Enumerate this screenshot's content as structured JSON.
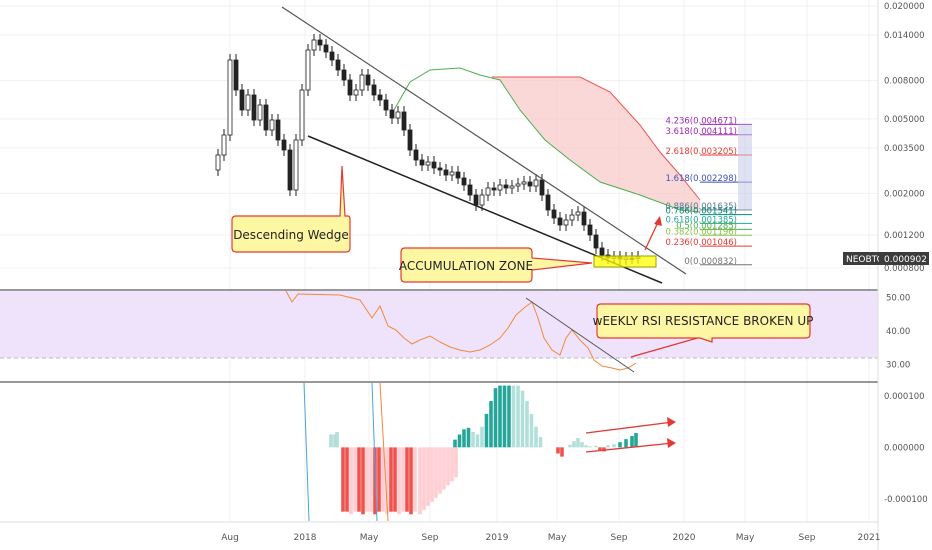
{
  "chart_data": {
    "type": "candlestick",
    "symbol": "NEOBTC",
    "last_price": "0.000902",
    "x_axis": {
      "ticks": [
        "Aug",
        "2018",
        "May",
        "Sep",
        "2019",
        "May",
        "Sep",
        "2020",
        "May",
        "Sep",
        "2021"
      ]
    },
    "price_axis": {
      "scale": "log",
      "ticks": [
        "0.020000",
        "0.014000",
        "0.008000",
        "0.005000",
        "0.003500",
        "0.002000",
        "0.001200",
        "0.000800"
      ]
    },
    "fib_levels": [
      {
        "label": "4.236(0.004671)",
        "value": 0.004671,
        "color": "#9c27b0"
      },
      {
        "label": "3.618(0.004111)",
        "value": 0.004111,
        "color": "#9c27b0"
      },
      {
        "label": "2.618(0.003205)",
        "value": 0.003205,
        "color": "#e53935"
      },
      {
        "label": "1.618(0.002298)",
        "value": 0.002298,
        "color": "#3f51b5"
      },
      {
        "label": "0.886(0.001635)",
        "value": 0.001635,
        "color": "#607d8b"
      },
      {
        "label": "0.786(0.001541)",
        "value": 0.001541,
        "color": "#00897b"
      },
      {
        "label": "0.618(0.001385)",
        "value": 0.001385,
        "color": "#26a69a"
      },
      {
        "label": "0.5(0.001285)",
        "value": 0.001285,
        "color": "#4caf50"
      },
      {
        "label": "0.382(0.001196)",
        "value": 0.001196,
        "color": "#8bc34a"
      },
      {
        "label": "0.236(0.001046)",
        "value": 0.001046,
        "color": "#e53935"
      },
      {
        "label": "0(0.000832)",
        "value": 0.000832,
        "color": "#757575"
      }
    ],
    "annotations": {
      "wedge": "Descending Wedge",
      "accumulation": "ACCUMULATION ZONE",
      "rsi": "wEEKLY RSI RESISTANCE BROKEN UP"
    },
    "rsi_panel": {
      "ticks": [
        "50.00",
        "40.00",
        "30.00"
      ],
      "ylim": [
        25,
        52
      ]
    },
    "histogram_panel": {
      "ticks": [
        "0.000100",
        "0.000000",
        "-0.000100"
      ],
      "ylim": [
        -0.000145,
        0.000125
      ]
    }
  },
  "colors": {
    "bull": "#26a69a",
    "bear": "#ef5350",
    "cloud": "#f8c8c8",
    "rsi_band": "#efe2fb",
    "rsi_line": "#f08a3c",
    "callout_fill": "#fdf6a3",
    "callout_stroke": "#e53935"
  }
}
